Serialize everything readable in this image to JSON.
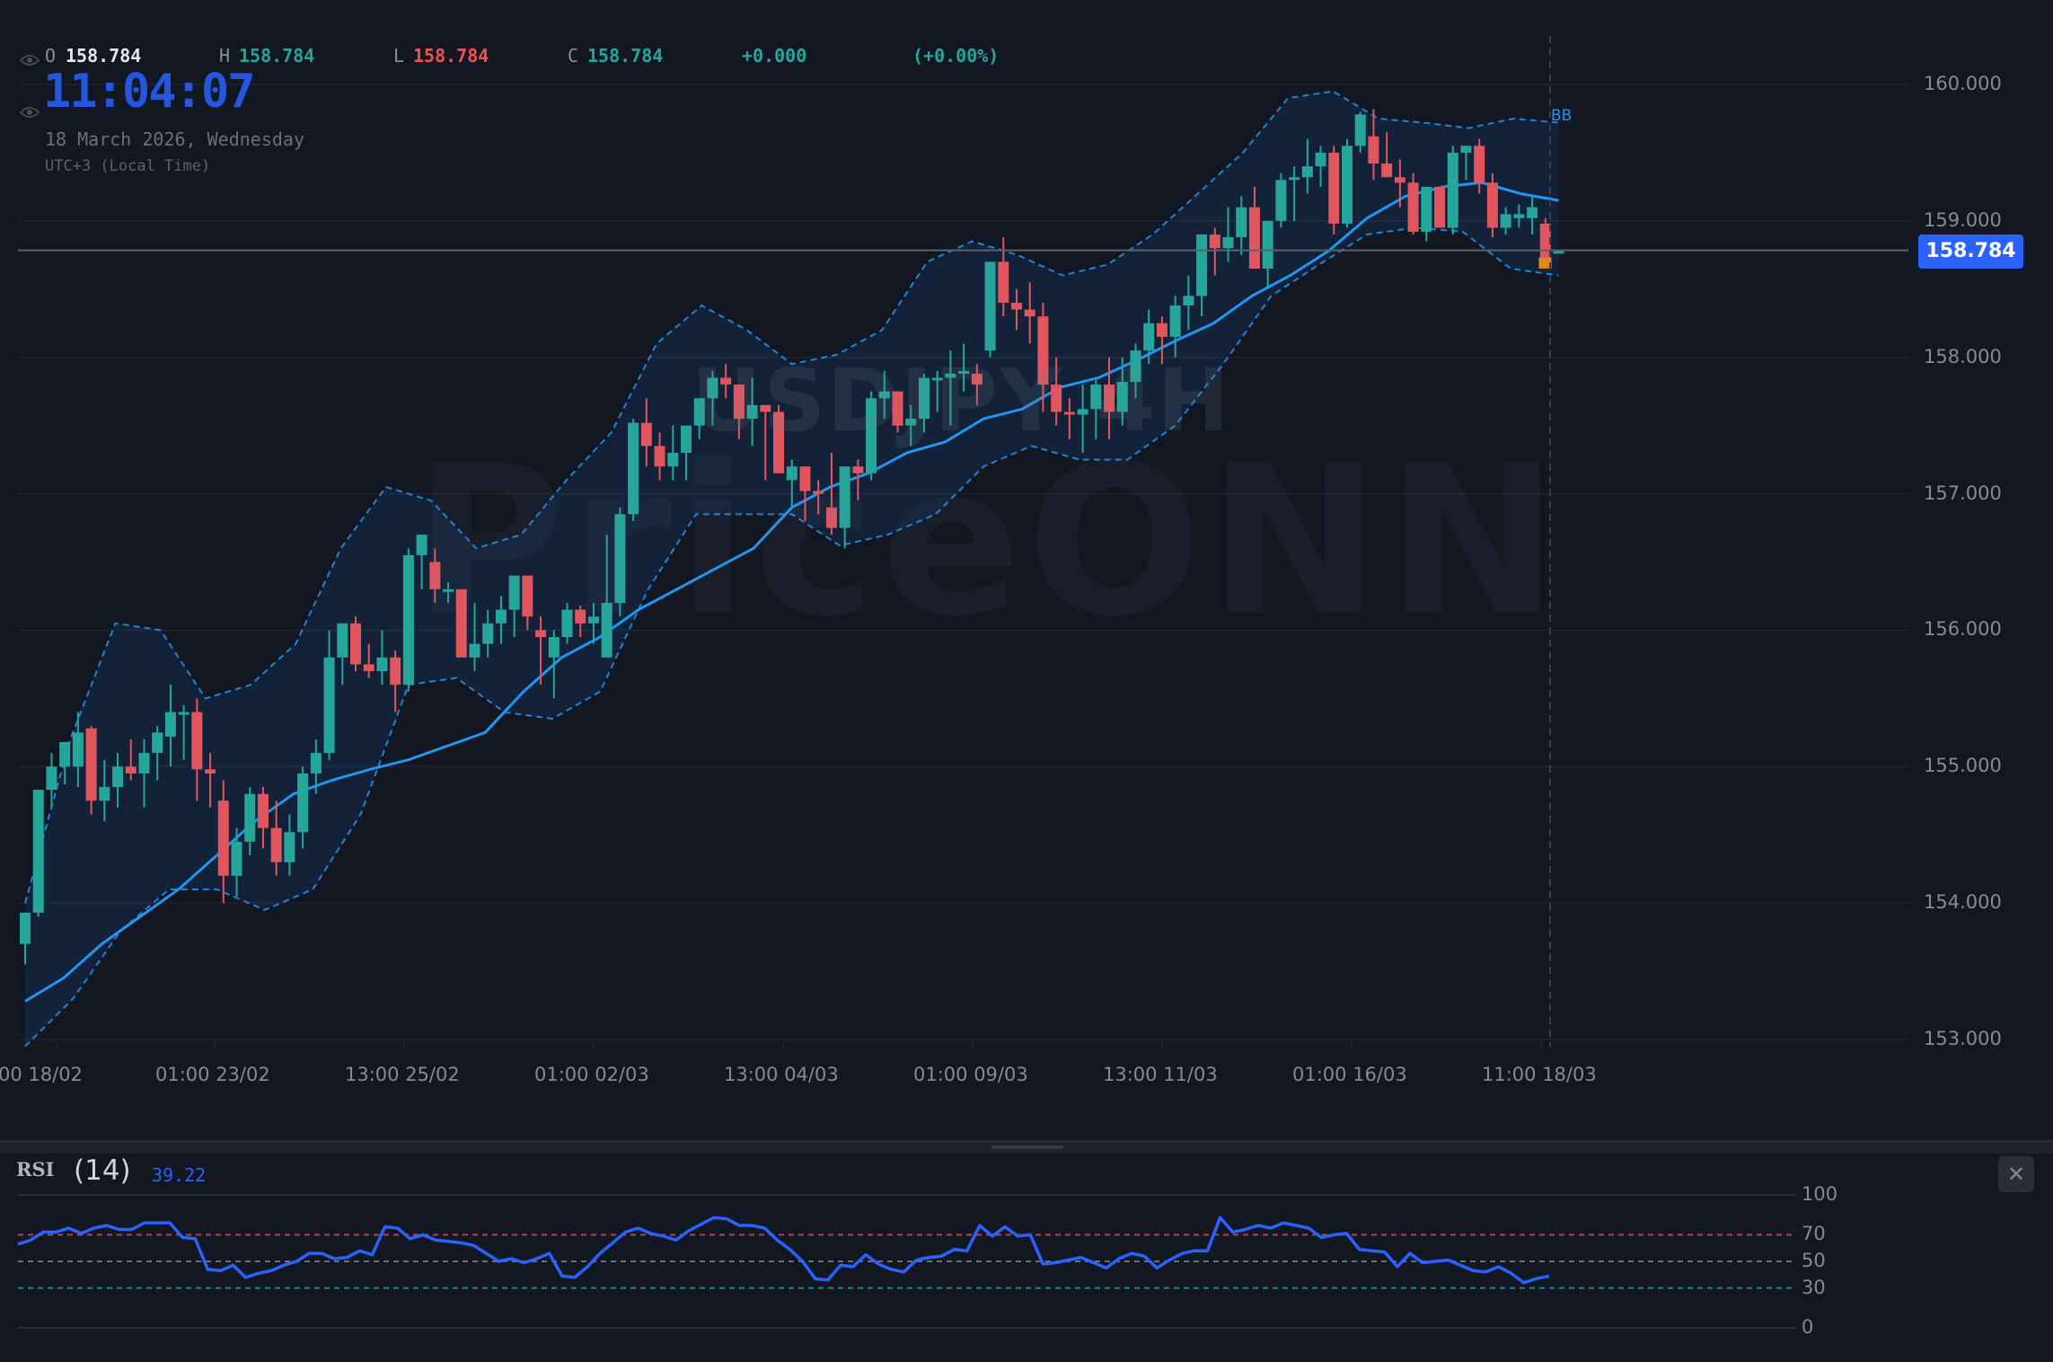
{
  "legend": {
    "open_label": "O",
    "open_value": "158.784",
    "high_label": "H",
    "high_value": "158.784",
    "low_label": "L",
    "low_value": "158.784",
    "close_label": "C",
    "close_value": "158.784",
    "change": "+0.000",
    "change_pct": "(+0.00%)"
  },
  "clock": {
    "time": "11:04:07",
    "date": "18 March 2026, Wednesday",
    "timezone": "UTC+3 (Local Time)"
  },
  "watermark": {
    "symbol": "USDJPY 4H",
    "brand": "PriceONN"
  },
  "indicator_label": "BB",
  "last_price": "158.784",
  "colors": {
    "background": "#131722",
    "up": "#26a69a",
    "down": "#e0565f",
    "bb_line": "#2196f3",
    "rsi_line": "#2962ff",
    "last_price_badge": "#2962ff",
    "current_bar": "#e08a1e"
  },
  "rsi_panel": {
    "title": "RSI",
    "period": "(14)",
    "value": "39.22",
    "close_label": "✕",
    "levels": [
      "100",
      "70",
      "50",
      "30",
      "0"
    ]
  },
  "chart_data": [
    {
      "type": "candlestick",
      "title": "USDJPY 4H",
      "xlabel": "",
      "ylabel": "",
      "ylim": [
        152.95,
        160.3
      ],
      "y_ticks": [
        "160.000",
        "159.000",
        "158.000",
        "157.000",
        "156.000",
        "155.000",
        "154.000",
        "153.000"
      ],
      "x_ticks": [
        "00 18/02",
        "01:00 23/02",
        "13:00 25/02",
        "01:00 02/03",
        "13:00 04/03",
        "01:00 09/03",
        "13:00 11/03",
        "01:00 16/03",
        "11:00 18/03"
      ],
      "last_price": 158.784,
      "grid": true,
      "overlays": [
        "Bollinger Bands (basis, upper, lower)"
      ],
      "ohlc": [
        [
          153.7,
          153.93,
          153.55,
          153.93
        ],
        [
          153.93,
          154.83,
          153.9,
          154.83
        ],
        [
          154.83,
          155.1,
          154.7,
          155.0
        ],
        [
          155.0,
          155.15,
          154.87,
          155.18
        ],
        [
          155.0,
          155.4,
          154.85,
          155.25
        ],
        [
          155.28,
          155.3,
          154.65,
          154.75
        ],
        [
          154.75,
          155.05,
          154.6,
          154.85
        ],
        [
          154.85,
          155.1,
          154.7,
          155.0
        ],
        [
          155.0,
          155.2,
          154.9,
          154.95
        ],
        [
          154.95,
          155.2,
          154.7,
          155.1
        ],
        [
          155.1,
          155.3,
          154.9,
          155.25
        ],
        [
          155.22,
          155.6,
          155.0,
          155.4
        ],
        [
          155.4,
          155.45,
          155.05,
          155.4
        ],
        [
          155.4,
          155.5,
          154.75,
          154.98
        ],
        [
          154.98,
          155.1,
          154.7,
          154.95
        ],
        [
          154.75,
          154.9,
          154.0,
          154.2
        ],
        [
          154.2,
          154.55,
          154.05,
          154.45
        ],
        [
          154.45,
          154.85,
          154.35,
          154.8
        ],
        [
          154.8,
          154.85,
          154.4,
          154.55
        ],
        [
          154.55,
          154.75,
          154.2,
          154.3
        ],
        [
          154.3,
          154.65,
          154.2,
          154.52
        ],
        [
          154.52,
          155.0,
          154.4,
          154.95
        ],
        [
          154.95,
          155.2,
          154.8,
          155.1
        ],
        [
          155.1,
          156.0,
          155.05,
          155.8
        ],
        [
          155.8,
          156.05,
          155.6,
          156.05
        ],
        [
          156.05,
          156.1,
          155.7,
          155.75
        ],
        [
          155.75,
          155.9,
          155.65,
          155.7
        ],
        [
          155.7,
          156.0,
          155.6,
          155.8
        ],
        [
          155.8,
          155.85,
          155.4,
          155.6
        ],
        [
          155.6,
          156.6,
          155.55,
          156.55
        ],
        [
          156.55,
          156.7,
          156.3,
          156.7
        ],
        [
          156.5,
          156.6,
          156.2,
          156.3
        ],
        [
          156.3,
          156.35,
          156.2,
          156.3
        ],
        [
          156.3,
          156.3,
          155.8,
          155.8
        ],
        [
          155.8,
          156.2,
          155.7,
          155.9
        ],
        [
          155.9,
          156.15,
          155.8,
          156.05
        ],
        [
          156.05,
          156.25,
          155.9,
          156.15
        ],
        [
          156.15,
          156.4,
          155.95,
          156.4
        ],
        [
          156.4,
          156.4,
          156.0,
          156.1
        ],
        [
          156.0,
          156.1,
          155.6,
          155.95
        ],
        [
          155.8,
          156.0,
          155.5,
          155.95
        ],
        [
          155.95,
          156.2,
          155.9,
          156.15
        ],
        [
          156.15,
          156.18,
          155.95,
          156.05
        ],
        [
          156.05,
          156.2,
          155.9,
          156.1
        ],
        [
          155.8,
          156.7,
          155.8,
          156.2
        ],
        [
          156.2,
          156.9,
          156.1,
          156.85
        ],
        [
          156.85,
          157.55,
          156.8,
          157.52
        ],
        [
          157.52,
          157.7,
          157.2,
          157.35
        ],
        [
          157.35,
          157.45,
          157.1,
          157.2
        ],
        [
          157.2,
          157.5,
          157.1,
          157.3
        ],
        [
          157.3,
          157.4,
          157.1,
          157.5
        ],
        [
          157.5,
          157.7,
          157.4,
          157.7
        ],
        [
          157.7,
          157.9,
          157.5,
          157.85
        ],
        [
          157.85,
          157.95,
          157.7,
          157.8
        ],
        [
          157.8,
          157.8,
          157.4,
          157.55
        ],
        [
          157.55,
          157.85,
          157.35,
          157.65
        ],
        [
          157.65,
          157.65,
          157.1,
          157.6
        ],
        [
          157.6,
          157.65,
          157.2,
          157.15
        ],
        [
          157.1,
          157.25,
          156.9,
          157.2
        ],
        [
          157.2,
          157.2,
          156.8,
          157.02
        ],
        [
          157.02,
          157.1,
          156.85,
          157.0
        ],
        [
          156.9,
          157.3,
          156.7,
          156.75
        ],
        [
          156.75,
          157.2,
          156.6,
          157.2
        ],
        [
          157.2,
          157.25,
          156.95,
          157.15
        ],
        [
          157.15,
          157.75,
          157.1,
          157.7
        ],
        [
          157.7,
          157.9,
          157.55,
          157.75
        ],
        [
          157.75,
          157.75,
          157.45,
          157.5
        ],
        [
          157.5,
          157.65,
          157.35,
          157.55
        ],
        [
          157.55,
          157.88,
          157.45,
          157.85
        ],
        [
          157.85,
          157.9,
          157.6,
          157.85
        ],
        [
          157.85,
          158.05,
          157.5,
          157.88
        ],
        [
          157.88,
          158.1,
          157.75,
          157.9
        ],
        [
          157.88,
          157.95,
          157.65,
          157.8
        ],
        [
          158.05,
          158.7,
          158.0,
          158.7
        ],
        [
          158.7,
          158.88,
          158.3,
          158.4
        ],
        [
          158.4,
          158.5,
          158.2,
          158.35
        ],
        [
          158.35,
          158.55,
          158.1,
          158.3
        ],
        [
          158.3,
          158.4,
          157.6,
          157.8
        ],
        [
          157.8,
          158.0,
          157.5,
          157.6
        ],
        [
          157.6,
          157.7,
          157.4,
          157.58
        ],
        [
          157.58,
          157.8,
          157.3,
          157.62
        ],
        [
          157.62,
          157.85,
          157.4,
          157.8
        ],
        [
          157.8,
          158.0,
          157.4,
          157.6
        ],
        [
          157.6,
          158.0,
          157.5,
          157.82
        ],
        [
          157.82,
          158.1,
          157.7,
          158.05
        ],
        [
          158.05,
          158.35,
          157.95,
          158.25
        ],
        [
          158.25,
          158.3,
          157.95,
          158.15
        ],
        [
          158.15,
          158.45,
          158.0,
          158.38
        ],
        [
          158.38,
          158.6,
          158.2,
          158.45
        ],
        [
          158.45,
          158.9,
          158.3,
          158.9
        ],
        [
          158.9,
          158.95,
          158.6,
          158.8
        ],
        [
          158.8,
          159.1,
          158.7,
          158.88
        ],
        [
          158.88,
          159.18,
          158.75,
          159.1
        ],
        [
          159.1,
          159.25,
          158.7,
          158.65
        ],
        [
          158.65,
          159.0,
          158.5,
          159.0
        ],
        [
          159.0,
          159.35,
          158.95,
          159.3
        ],
        [
          159.3,
          159.4,
          159.0,
          159.32
        ],
        [
          159.32,
          159.6,
          159.2,
          159.4
        ],
        [
          159.4,
          159.55,
          159.25,
          159.5
        ],
        [
          159.5,
          159.55,
          158.9,
          158.98
        ],
        [
          158.98,
          159.6,
          158.95,
          159.55
        ],
        [
          159.55,
          159.8,
          159.5,
          159.78
        ],
        [
          159.62,
          159.82,
          159.3,
          159.42
        ],
        [
          159.42,
          159.65,
          159.35,
          159.32
        ],
        [
          159.32,
          159.45,
          159.1,
          159.28
        ],
        [
          159.28,
          159.35,
          158.9,
          158.92
        ],
        [
          158.92,
          159.25,
          158.85,
          159.25
        ],
        [
          159.25,
          159.25,
          158.95,
          158.95
        ],
        [
          158.95,
          159.55,
          158.9,
          159.5
        ],
        [
          159.5,
          159.55,
          159.3,
          159.55
        ],
        [
          159.55,
          159.6,
          159.2,
          159.28
        ],
        [
          159.28,
          159.35,
          158.88,
          158.95
        ],
        [
          158.95,
          159.1,
          158.9,
          159.05
        ],
        [
          159.02,
          159.12,
          158.95,
          159.05
        ],
        [
          159.02,
          159.18,
          158.9,
          159.1
        ],
        [
          158.98,
          159.02,
          158.65,
          158.68
        ],
        [
          158.78,
          158.78,
          158.78,
          158.78
        ]
      ],
      "bb_basis": [
        153.28,
        153.45,
        153.7,
        153.9,
        154.1,
        154.35,
        154.6,
        154.8,
        154.9,
        154.98,
        155.05,
        155.15,
        155.25,
        155.55,
        155.8,
        155.95,
        156.15,
        156.3,
        156.45,
        156.6,
        156.9,
        157.05,
        157.15,
        157.3,
        157.38,
        157.55,
        157.62,
        157.78,
        157.85,
        157.98,
        158.12,
        158.25,
        158.45,
        158.6,
        158.78,
        159.02,
        159.18,
        159.25,
        159.28,
        159.2,
        159.15
      ],
      "bb_upper": [
        154.0,
        155.2,
        156.05,
        156.0,
        155.5,
        155.6,
        155.9,
        156.6,
        157.05,
        156.95,
        156.6,
        156.7,
        157.1,
        157.45,
        158.1,
        158.38,
        158.2,
        157.95,
        158.02,
        158.2,
        158.7,
        158.85,
        158.75,
        158.6,
        158.68,
        158.9,
        159.2,
        159.5,
        159.9,
        159.95,
        159.75,
        159.72,
        159.68,
        159.75,
        159.72
      ],
      "bb_lower": [
        152.95,
        153.3,
        153.8,
        154.1,
        154.1,
        153.95,
        154.1,
        154.65,
        155.6,
        155.65,
        155.4,
        155.35,
        155.55,
        156.3,
        156.85,
        156.85,
        156.85,
        156.62,
        156.7,
        156.85,
        157.2,
        157.35,
        157.25,
        157.25,
        157.5,
        157.95,
        158.45,
        158.68,
        158.9,
        158.95,
        158.92,
        158.65,
        158.6
      ]
    },
    {
      "type": "line",
      "title": "RSI (14)",
      "ylim": [
        0,
        100
      ],
      "y_ticks": [
        "100",
        "70",
        "50",
        "30",
        "0"
      ],
      "levels": [
        70,
        50,
        30
      ],
      "last_value": 39.22,
      "values": [
        63,
        66,
        72,
        72,
        75,
        71,
        75,
        77,
        74,
        74,
        79,
        79,
        79,
        68,
        67,
        44,
        43,
        47,
        38,
        41,
        43,
        47,
        50,
        56,
        56,
        52,
        53,
        58,
        55,
        76,
        75,
        67,
        70,
        66,
        65,
        64,
        62,
        56,
        50,
        52,
        49,
        52,
        56,
        39,
        38,
        46,
        56,
        64,
        72,
        75,
        71,
        69,
        66,
        73,
        78,
        83,
        82,
        77,
        77,
        75,
        66,
        59,
        50,
        37,
        36,
        47,
        46,
        55,
        48,
        44,
        42,
        51,
        53,
        54,
        59,
        58,
        77,
        69,
        76,
        69,
        70,
        48,
        49,
        51,
        53,
        49,
        45,
        52,
        56,
        54,
        45,
        51,
        56,
        58,
        58,
        83,
        72,
        74,
        77,
        75,
        79,
        77,
        75,
        68,
        70,
        71,
        59,
        58,
        57,
        46,
        56,
        49,
        50,
        51,
        47,
        43,
        42,
        46,
        41,
        34,
        37,
        39
      ]
    }
  ]
}
